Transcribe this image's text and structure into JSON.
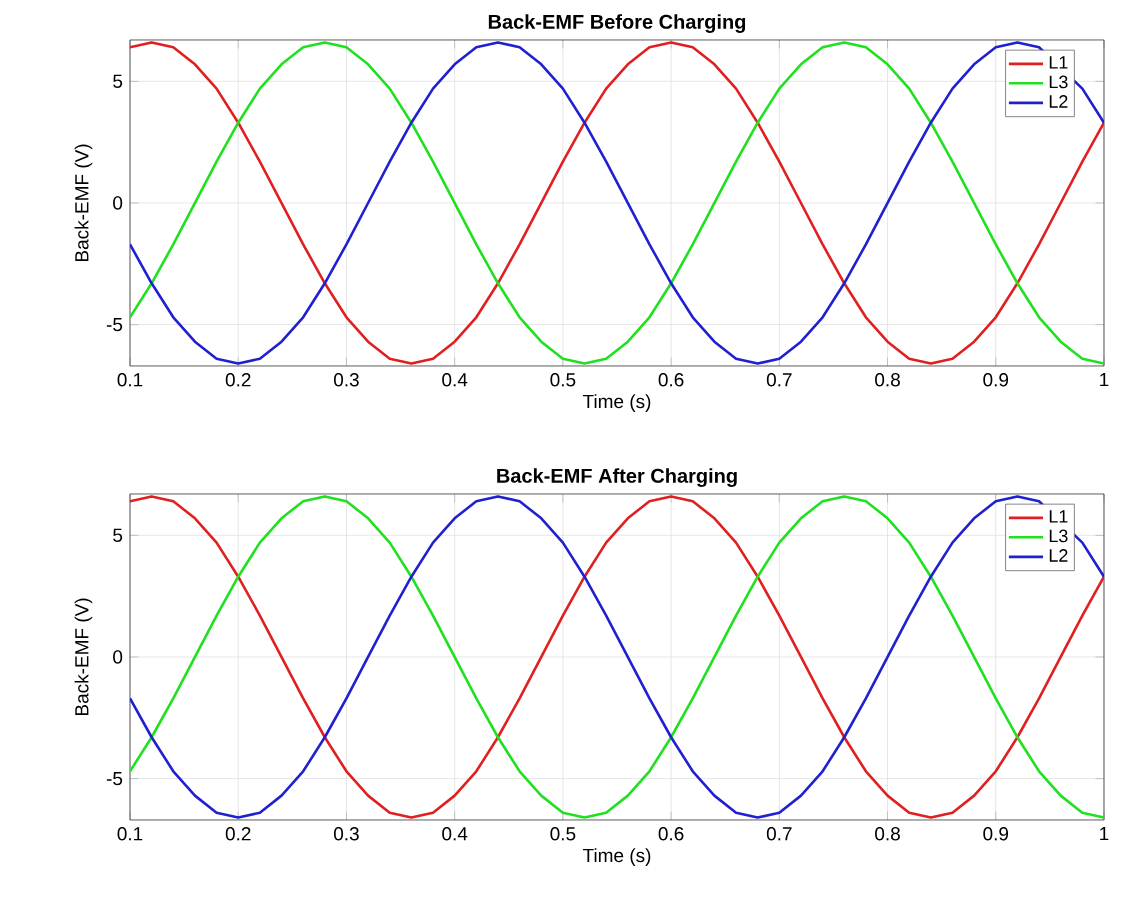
{
  "chart_data": [
    {
      "type": "line",
      "title": "Back-EMF Before Charging",
      "xlabel": "Time (s)",
      "ylabel": "Back-EMF (V)",
      "xlim": [
        0.1,
        1
      ],
      "ylim": [
        -6.7,
        6.7
      ],
      "xticks": [
        0.1,
        0.2,
        0.3,
        0.4,
        0.5,
        0.6,
        0.7,
        0.8,
        0.9,
        1
      ],
      "yticks": [
        -5,
        0,
        5
      ],
      "grid": true,
      "legend": "top right",
      "line_style": "solid",
      "marker": "none",
      "x": [
        0.1,
        0.12,
        0.14,
        0.16,
        0.18,
        0.2,
        0.22,
        0.24,
        0.26,
        0.28,
        0.3,
        0.32,
        0.34,
        0.36,
        0.38,
        0.4,
        0.42,
        0.44,
        0.46,
        0.48,
        0.5,
        0.52,
        0.54,
        0.56,
        0.58,
        0.6,
        0.62,
        0.64,
        0.66,
        0.68,
        0.7,
        0.72,
        0.74,
        0.76,
        0.78,
        0.8,
        0.82,
        0.84,
        0.86,
        0.88,
        0.9,
        0.92,
        0.94,
        0.96,
        0.98,
        1.0
      ],
      "series": [
        {
          "name": "L1",
          "color": "#e02020",
          "values": [
            6.4,
            6.6,
            6.4,
            5.7,
            4.7,
            3.3,
            1.7,
            0,
            -1.7,
            -3.3,
            -4.7,
            -5.7,
            -6.4,
            -6.6,
            -6.4,
            -5.7,
            -4.7,
            -3.3,
            -1.7,
            0,
            1.7,
            3.3,
            4.7,
            5.7,
            6.4,
            6.6,
            6.4,
            5.7,
            4.7,
            3.3,
            1.7,
            0,
            -1.7,
            -3.3,
            -4.7,
            -5.7,
            -6.4,
            -6.6,
            -6.4,
            -5.7,
            -4.7,
            -3.3,
            -1.7,
            0,
            1.7,
            3.3
          ]
        },
        {
          "name": "L3",
          "color": "#20e020",
          "values": [
            -4.7,
            -3.3,
            -1.7,
            0,
            1.7,
            3.3,
            4.7,
            5.7,
            6.4,
            6.6,
            6.4,
            5.7,
            4.7,
            3.3,
            1.7,
            0,
            -1.7,
            -3.3,
            -4.7,
            -5.7,
            -6.4,
            -6.6,
            -6.4,
            -5.7,
            -4.7,
            -3.3,
            -1.7,
            0,
            1.7,
            3.3,
            4.7,
            5.7,
            6.4,
            6.6,
            6.4,
            5.7,
            4.7,
            3.3,
            1.7,
            0,
            -1.7,
            -3.3,
            -4.7,
            -5.7,
            -6.4,
            -6.6
          ]
        },
        {
          "name": "L2",
          "color": "#2020d0",
          "values": [
            -1.7,
            -3.3,
            -4.7,
            -5.7,
            -6.4,
            -6.6,
            -6.4,
            -5.7,
            -4.7,
            -3.3,
            -1.7,
            0,
            1.7,
            3.3,
            4.7,
            5.7,
            6.4,
            6.6,
            6.4,
            5.7,
            4.7,
            3.3,
            1.7,
            0,
            -1.7,
            -3.3,
            -4.7,
            -5.7,
            -6.4,
            -6.6,
            -6.4,
            -5.7,
            -4.7,
            -3.3,
            -1.7,
            0,
            1.7,
            3.3,
            4.7,
            5.7,
            6.4,
            6.6,
            6.4,
            null,
            4.7,
            3.3
          ]
        }
      ]
    },
    {
      "type": "line",
      "title": "Back-EMF After Charging",
      "xlabel": "Time (s)",
      "ylabel": "Back-EMF (V)",
      "xlim": [
        0.1,
        1
      ],
      "ylim": [
        -6.7,
        6.7
      ],
      "xticks": [
        0.1,
        0.2,
        0.3,
        0.4,
        0.5,
        0.6,
        0.7,
        0.8,
        0.9,
        1
      ],
      "yticks": [
        -5,
        0,
        5
      ],
      "grid": true,
      "legend": "top right",
      "line_style": "solid",
      "marker": "none",
      "x": [
        0.1,
        0.12,
        0.14,
        0.16,
        0.18,
        0.2,
        0.22,
        0.24,
        0.26,
        0.28,
        0.3,
        0.32,
        0.34,
        0.36,
        0.38,
        0.4,
        0.42,
        0.44,
        0.46,
        0.48,
        0.5,
        0.52,
        0.54,
        0.56,
        0.58,
        0.6,
        0.62,
        0.64,
        0.66,
        0.68,
        0.7,
        0.72,
        0.74,
        0.76,
        0.78,
        0.8,
        0.82,
        0.84,
        0.86,
        0.88,
        0.9,
        0.92,
        0.94,
        0.96,
        0.98,
        1.0
      ],
      "series": [
        {
          "name": "L1",
          "color": "#e02020",
          "values": [
            6.4,
            6.6,
            6.4,
            5.7,
            4.7,
            3.3,
            1.7,
            0,
            -1.7,
            -3.3,
            -4.7,
            -5.7,
            -6.4,
            -6.6,
            -6.4,
            -5.7,
            -4.7,
            -3.3,
            -1.7,
            0,
            1.7,
            3.3,
            4.7,
            5.7,
            6.4,
            6.6,
            6.4,
            5.7,
            4.7,
            3.3,
            1.7,
            0,
            -1.7,
            -3.3,
            -4.7,
            -5.7,
            -6.4,
            -6.6,
            -6.4,
            -5.7,
            -4.7,
            -3.3,
            -1.7,
            0,
            1.7,
            3.3
          ]
        },
        {
          "name": "L3",
          "color": "#20e020",
          "values": [
            -4.7,
            -3.3,
            -1.7,
            0,
            1.7,
            3.3,
            4.7,
            5.7,
            6.4,
            6.6,
            6.4,
            5.7,
            4.7,
            3.3,
            1.7,
            0,
            -1.7,
            -3.3,
            -4.7,
            -5.7,
            -6.4,
            -6.6,
            -6.4,
            -5.7,
            -4.7,
            -3.3,
            -1.7,
            0,
            1.7,
            3.3,
            4.7,
            5.7,
            6.4,
            6.6,
            6.4,
            5.7,
            4.7,
            3.3,
            1.7,
            0,
            -1.7,
            -3.3,
            -4.7,
            -5.7,
            -6.4,
            -6.6
          ]
        },
        {
          "name": "L2",
          "color": "#2020d0",
          "values": [
            -1.7,
            -3.3,
            -4.7,
            -5.7,
            -6.4,
            -6.6,
            -6.4,
            -5.7,
            -4.7,
            -3.3,
            -1.7,
            0,
            1.7,
            3.3,
            4.7,
            5.7,
            6.4,
            6.6,
            6.4,
            5.7,
            4.7,
            3.3,
            1.7,
            0,
            -1.7,
            -3.3,
            -4.7,
            -5.7,
            -6.4,
            -6.6,
            -6.4,
            -5.7,
            -4.7,
            -3.3,
            -1.7,
            0,
            1.7,
            3.3,
            4.7,
            5.7,
            6.4,
            6.6,
            6.4,
            null,
            4.7,
            3.3
          ]
        }
      ]
    }
  ]
}
